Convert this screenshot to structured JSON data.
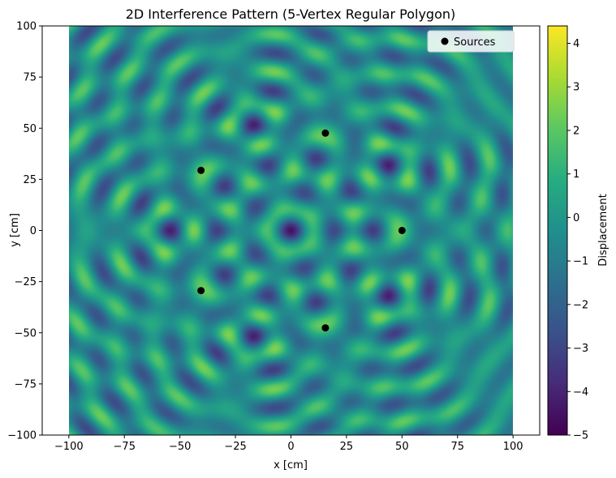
{
  "chart_data": {
    "type": "heatmap",
    "title": "2D Interference Pattern (5-Vertex Regular Polygon)",
    "xlabel": "x [cm]",
    "ylabel": "y [cm]",
    "xlim": [
      -112,
      112
    ],
    "ylim": [
      -100,
      100
    ],
    "extent": [
      -100,
      100,
      -100,
      100
    ],
    "xticks": [
      -100,
      -75,
      -50,
      -25,
      0,
      25,
      50,
      75,
      100
    ],
    "yticks": [
      -100,
      -75,
      -50,
      -25,
      0,
      25,
      50,
      75,
      100
    ],
    "colormap": "viridis",
    "colorbar": {
      "label": "Displacement",
      "min": -5,
      "max": 4.4,
      "ticks": [
        -5,
        -4,
        -3,
        -2,
        -1,
        0,
        1,
        2,
        3,
        4
      ]
    },
    "sources": {
      "name": "Sources",
      "color": "#000000",
      "points": [
        [
          50,
          0
        ],
        [
          15.5,
          47.6
        ],
        [
          -40.5,
          29.4
        ],
        [
          -40.5,
          -29.4
        ],
        [
          15.5,
          -47.6
        ]
      ]
    },
    "legend_position": "top-right"
  }
}
